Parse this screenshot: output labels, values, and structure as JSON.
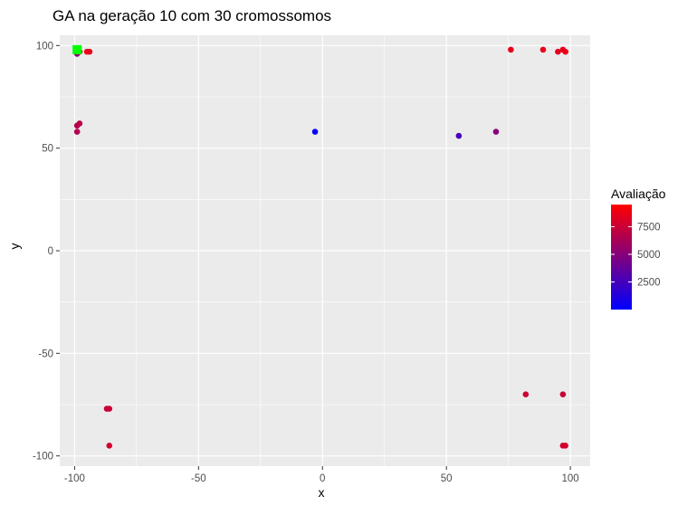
{
  "chart_data": {
    "type": "scatter",
    "title": "GA na geração 10 com 30 cromossomos",
    "xlabel": "x",
    "ylabel": "y",
    "xlim": [
      -106,
      108
    ],
    "ylim": [
      -105,
      105
    ],
    "x_ticks": [
      -100,
      -50,
      0,
      50,
      100
    ],
    "y_ticks": [
      -100,
      -50,
      0,
      50,
      100
    ],
    "x_tick_labels": [
      "-100",
      "-50",
      "0",
      "50",
      "100"
    ],
    "y_tick_labels": [
      "-100",
      "-50",
      "0",
      "50",
      "100"
    ],
    "grid": true,
    "legend": {
      "title": "Avaliação",
      "position": "right",
      "min": 0,
      "max": 9500,
      "ticks": [
        2500,
        5000,
        7500
      ],
      "tick_labels": [
        "2500",
        "5000",
        "7500"
      ],
      "color_low": "#0000FF",
      "color_high": "#FF0000"
    },
    "points": [
      {
        "x": -99,
        "y": 96,
        "value": 5000
      },
      {
        "x": -98,
        "y": 97,
        "value": 8300
      },
      {
        "x": -95,
        "y": 97,
        "value": 8700
      },
      {
        "x": -94,
        "y": 97,
        "value": 8500
      },
      {
        "x": -99,
        "y": 61,
        "value": 6700
      },
      {
        "x": -98,
        "y": 62,
        "value": 6800
      },
      {
        "x": -99,
        "y": 58,
        "value": 6600
      },
      {
        "x": -3,
        "y": 58,
        "value": 300
      },
      {
        "x": 55,
        "y": 56,
        "value": 2600
      },
      {
        "x": 70,
        "y": 58,
        "value": 5000
      },
      {
        "x": 76,
        "y": 98,
        "value": 8500
      },
      {
        "x": 89,
        "y": 98,
        "value": 8600
      },
      {
        "x": 95,
        "y": 97,
        "value": 8400
      },
      {
        "x": 97,
        "y": 98,
        "value": 8600
      },
      {
        "x": 98,
        "y": 97,
        "value": 8700
      },
      {
        "x": 82,
        "y": -70,
        "value": 7600
      },
      {
        "x": 97,
        "y": -70,
        "value": 7500
      },
      {
        "x": -87,
        "y": -77,
        "value": 7400
      },
      {
        "x": -86,
        "y": -77,
        "value": 7500
      },
      {
        "x": -86,
        "y": -95,
        "value": 7800
      },
      {
        "x": 97,
        "y": -95,
        "value": 7700
      },
      {
        "x": 98,
        "y": -95,
        "value": 7800
      }
    ],
    "highlight": {
      "x": -99,
      "y": 98,
      "color": "#00FF00",
      "shape": "square"
    },
    "colors": {
      "panel": "#EBEBEB",
      "grid": "#FFFFFF"
    }
  }
}
